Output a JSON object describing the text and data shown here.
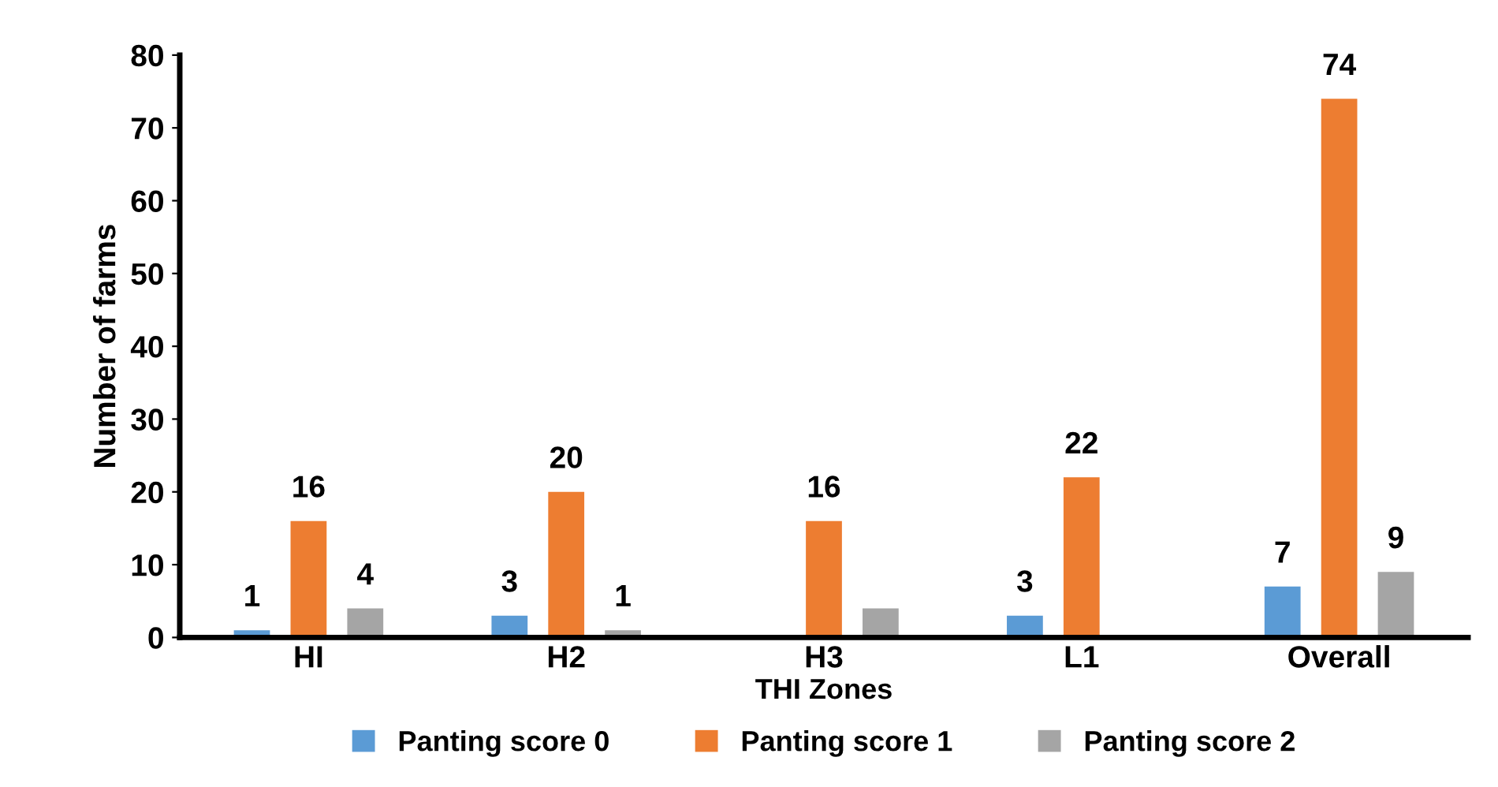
{
  "chart_data": {
    "type": "bar",
    "xlabel": "THI Zones",
    "ylabel": "Number of farms",
    "categories": [
      "HI",
      "H2",
      "H3",
      "L1",
      "Overall"
    ],
    "series": [
      {
        "name": "Panting score 0",
        "color": "#5b9bd5",
        "values": [
          1,
          3,
          null,
          3,
          7
        ],
        "value_labels": [
          "1",
          "3",
          null,
          "3",
          "7"
        ]
      },
      {
        "name": "Panting score 1",
        "color": "#ed7d31",
        "values": [
          16,
          20,
          16,
          22,
          74
        ],
        "value_labels": [
          "16",
          "20",
          "16",
          "22",
          "74"
        ]
      },
      {
        "name": "Panting score 2",
        "color": "#a5a5a5",
        "values": [
          4,
          1,
          4,
          null,
          9
        ],
        "value_labels": [
          "4",
          "1",
          null,
          null,
          "9"
        ]
      }
    ],
    "ylim": [
      0,
      80
    ],
    "yticks": [
      0,
      10,
      20,
      30,
      40,
      50,
      60,
      70,
      80
    ],
    "grid": false,
    "legend": "bottom"
  }
}
